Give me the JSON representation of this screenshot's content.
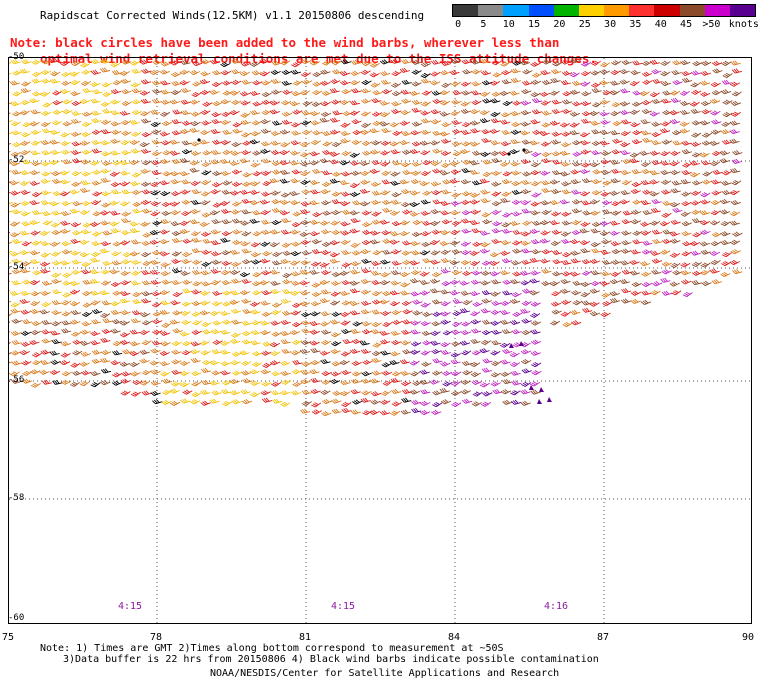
{
  "title": "Rapidscat Corrected Winds(12.5KM) v1.1 20150806 descending",
  "note": {
    "line1": "Note: black circles have been added to the wind barbs, wherever less than",
    "line2": "optimal wind retrieval conditions are met due to the ISS attitude changes."
  },
  "legend": {
    "unit_label": "knots",
    "stops": [
      {
        "label": "0",
        "color": "#3a3a3a"
      },
      {
        "label": "5",
        "color": "#8a8a8a"
      },
      {
        "label": "10",
        "color": "#00a0ff"
      },
      {
        "label": "15",
        "color": "#0050ff"
      },
      {
        "label": "20",
        "color": "#00b400"
      },
      {
        "label": "25",
        "color": "#ffd000"
      },
      {
        "label": "30",
        "color": "#ff9a00"
      },
      {
        "label": "35",
        "color": "#ff3030"
      },
      {
        "label": "40",
        "color": "#cc0000"
      },
      {
        "label": "45",
        "color": "#8b4a2a"
      },
      {
        "label": ">50",
        "color": "#cc00cc"
      },
      {
        "label": "",
        "color": "#5a0090"
      }
    ]
  },
  "map": {
    "lat_labels": [
      "-50",
      "-52",
      "-54",
      "-56",
      "-58",
      "-60"
    ],
    "lon_labels": [
      "75",
      "78",
      "81",
      "84",
      "87",
      "90"
    ],
    "time_labels": [
      "4:15",
      "4:15",
      "4:16"
    ]
  },
  "footer": {
    "line1": "Note: 1) Times are GMT 2)Times along bottom correspond to measurement at ~50S",
    "line2": "3)Data buffer is 22 hrs from 20150806 4) Black wind barbs indicate possible contamination",
    "credit": "NOAA/NESDIS/Center for Satellite Applications and Research"
  },
  "colors": {
    "yellow": "#f2c200",
    "orange": "#d97a1a",
    "red": "#e01a1a",
    "brown": "#8b4a2a",
    "magenta": "#c020c0",
    "purple": "#5a0090",
    "black": "#000000"
  }
}
